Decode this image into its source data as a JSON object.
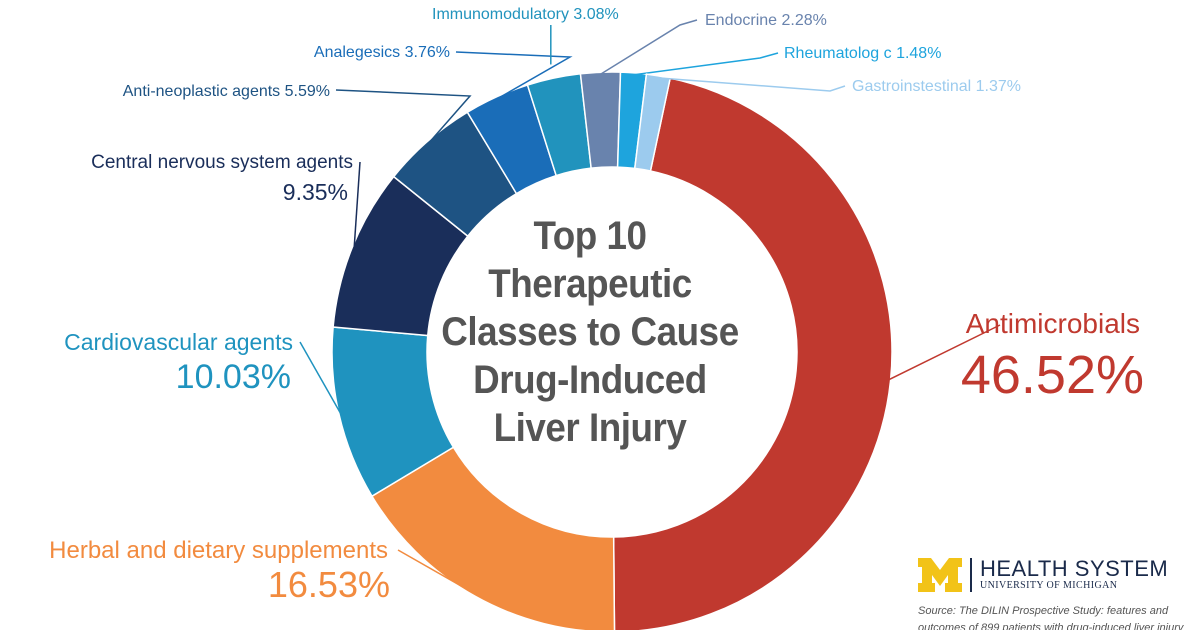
{
  "chart_data": {
    "type": "pie",
    "donut": true,
    "title_lines": [
      "Top 10",
      "Therapeutic",
      "Classes to Cause",
      "Drug-Induced",
      "Liver Injury"
    ],
    "slices": [
      {
        "name": "Antimicrobials",
        "value": 46.52,
        "label": "46.52%",
        "color": "#c0392f"
      },
      {
        "name": "Herbal and dietary supplements",
        "value": 16.53,
        "label": "16.53%",
        "color": "#f28b3f"
      },
      {
        "name": "Cardiovascular agents",
        "value": 10.03,
        "label": "10.03%",
        "color": "#1f93bf"
      },
      {
        "name": "Central nervous system agents",
        "value": 9.35,
        "label": "9.35%",
        "color": "#1a2e5a"
      },
      {
        "name": "Anti-neoplastic agents",
        "value": 5.59,
        "label": "5.59%",
        "color": "#1e5383"
      },
      {
        "name": "Analegesics",
        "value": 3.76,
        "label": "3.76%",
        "color": "#1a6db8"
      },
      {
        "name": "Immunomodulatory",
        "value": 3.08,
        "label": "3.08%",
        "color": "#2193bd"
      },
      {
        "name": "Endocrine",
        "value": 2.28,
        "label": "2.28%",
        "color": "#6983ad"
      },
      {
        "name": "Rheumatolog c",
        "value": 1.48,
        "label": "1.48%",
        "color": "#1ea4dd"
      },
      {
        "name": "Gastroinstestinal",
        "value": 1.37,
        "label": "1.37%",
        "color": "#9ccbee"
      }
    ]
  },
  "brand": {
    "name": "HEALTH SYSTEM",
    "sub": "UNIVERSITY OF MICHIGAN",
    "m_color": "#f2c318",
    "navy": "#1a2a4a"
  },
  "source": "Source: The DILIN Prospective Study: features and outcomes of 899 patients with drug-induced liver injury"
}
